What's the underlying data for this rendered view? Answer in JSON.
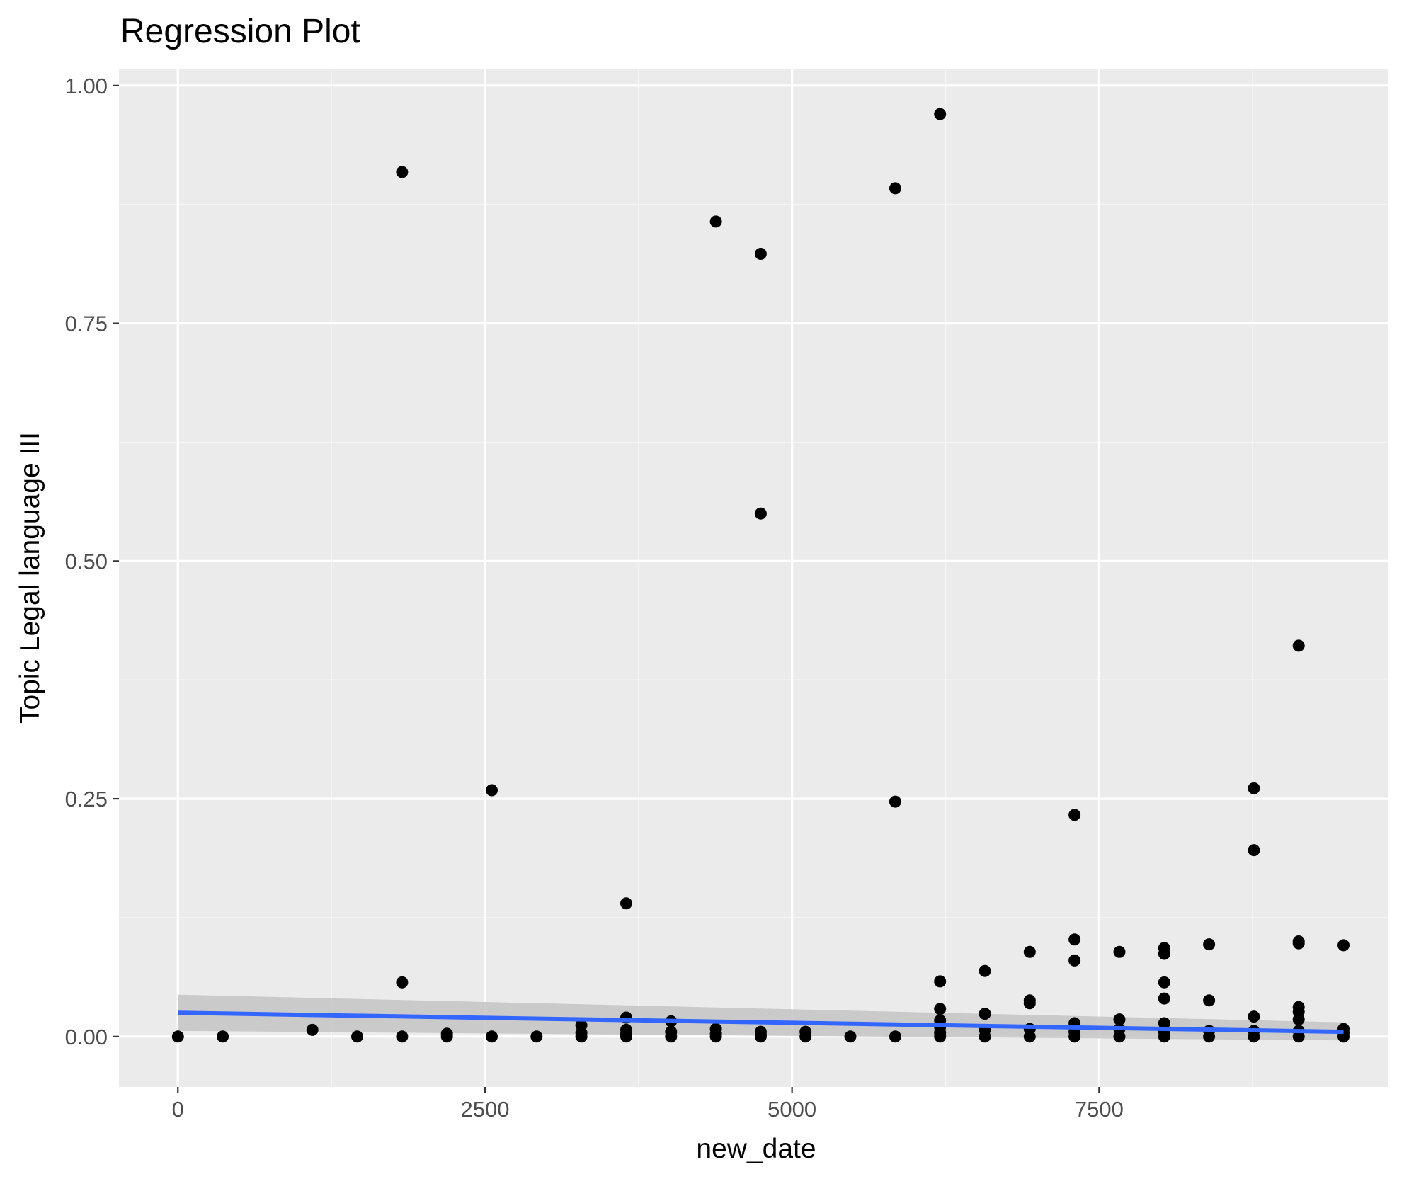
{
  "chart_data": {
    "type": "scatter",
    "title": "Regression Plot",
    "xlabel": "new_date",
    "ylabel": "Topic Legal language III",
    "xlim": [
      -480,
      9850
    ],
    "ylim": [
      -0.053,
      1.017
    ],
    "x_ticks": [
      0,
      2500,
      5000,
      7500
    ],
    "x_tick_labels": [
      "0",
      "2500",
      "5000",
      "7500"
    ],
    "y_ticks": [
      0.0,
      0.25,
      0.5,
      0.75,
      1.0
    ],
    "y_tick_labels": [
      "0.00",
      "0.25",
      "0.50",
      "0.75",
      "1.00"
    ],
    "grid": true,
    "legend": "none",
    "colors": {
      "panel_background": "#ebebeb",
      "grid_major": "#ffffff",
      "grid_minor": "#f5f5f5",
      "points": "#000000",
      "regression_line": "#3366ff",
      "confidence_band": "#c4c4c4",
      "tick_text": "#4d4d4d",
      "tick_mark": "#333333"
    },
    "series": [
      {
        "kind": "points",
        "x": [
          0,
          365,
          1095,
          1460,
          1825,
          1825,
          1825,
          2190,
          2190,
          2555,
          2555,
          2920,
          3285,
          3285,
          3285,
          3650,
          3650,
          3650,
          3650,
          3650,
          4015,
          4015,
          4015,
          4380,
          4380,
          4380,
          4380,
          4745,
          4745,
          4745,
          4745,
          4745,
          5110,
          5110,
          5475,
          5840,
          5840,
          5840,
          6205,
          6205,
          6205,
          6205,
          6205,
          6205,
          6205,
          6570,
          6570,
          6570,
          6570,
          6935,
          6935,
          6935,
          6935,
          6935,
          7300,
          7300,
          7300,
          7300,
          7300,
          7300,
          7665,
          7665,
          7665,
          7665,
          8030,
          8030,
          8030,
          8030,
          8030,
          8030,
          8030,
          8395,
          8395,
          8395,
          8395,
          8760,
          8760,
          8760,
          8760,
          8760,
          9125,
          9125,
          9125,
          9125,
          9125,
          9125,
          9125,
          9125,
          9490,
          9490,
          9490,
          9490
        ],
        "y": [
          0.0,
          0.0,
          0.007,
          0.0,
          0.909,
          0.057,
          0.0,
          0.003,
          0.0,
          0.259,
          0.0,
          0.0,
          0.012,
          0.004,
          0.0,
          0.14,
          0.02,
          0.007,
          0.003,
          0.0,
          0.016,
          0.005,
          0.0,
          0.857,
          0.008,
          0.003,
          0.0,
          0.823,
          0.55,
          0.005,
          0.002,
          0.0,
          0.005,
          0.0,
          0.0,
          0.892,
          0.247,
          0.0,
          0.97,
          0.058,
          0.029,
          0.017,
          0.01,
          0.004,
          0.0,
          0.069,
          0.024,
          0.007,
          0.0,
          0.089,
          0.038,
          0.035,
          0.008,
          0.0,
          0.233,
          0.102,
          0.08,
          0.014,
          0.005,
          0.0,
          0.089,
          0.018,
          0.008,
          0.0,
          0.093,
          0.087,
          0.057,
          0.04,
          0.014,
          0.005,
          0.0,
          0.097,
          0.038,
          0.006,
          0.0,
          0.261,
          0.196,
          0.021,
          0.006,
          0.0,
          0.411,
          0.1,
          0.098,
          0.031,
          0.026,
          0.018,
          0.006,
          0.0,
          0.096,
          0.008,
          0.004,
          0.0
        ]
      },
      {
        "kind": "regression",
        "method": "lm",
        "x": [
          0,
          9490
        ],
        "y": [
          0.025,
          0.005
        ],
        "ci_lower": [
          0.006,
          -0.004
        ],
        "ci_upper": [
          0.044,
          0.015
        ]
      }
    ]
  }
}
